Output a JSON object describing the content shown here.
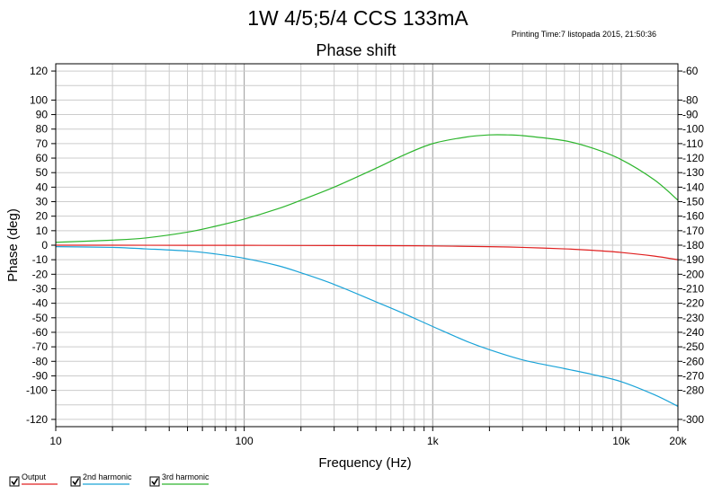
{
  "header": {
    "title": "1W 4/5;5/4 CCS 133mA",
    "printing_time": "Printing Time:7 listopada 2015, 21:50:36"
  },
  "chart_data": {
    "type": "line",
    "title": "Phase shift",
    "xlabel": "Frequency (Hz)",
    "ylabel": "Phase (deg)",
    "x_scale": "log",
    "xlim": [
      10,
      20000
    ],
    "ylim": [
      -125,
      125
    ],
    "y2lim": [
      -305,
      -55
    ],
    "x_tick_labels": [
      {
        "value": 10,
        "label": "10"
      },
      {
        "value": 100,
        "label": "100"
      },
      {
        "value": 1000,
        "label": "1k"
      },
      {
        "value": 10000,
        "label": "10k"
      },
      {
        "value": 20000,
        "label": "20k"
      }
    ],
    "y_ticks": [
      120,
      100,
      90,
      80,
      70,
      60,
      50,
      40,
      30,
      20,
      10,
      0,
      -10,
      -20,
      -30,
      -40,
      -50,
      -60,
      -70,
      -80,
      -90,
      -100,
      -120
    ],
    "y2_ticks": [
      -60,
      -80,
      -90,
      -100,
      -110,
      -120,
      -130,
      -140,
      -150,
      -160,
      -170,
      -180,
      -190,
      -200,
      -210,
      -220,
      -230,
      -240,
      -250,
      -260,
      -270,
      -280,
      -300
    ],
    "grid": true,
    "legend_position": "bottom-left",
    "series": [
      {
        "name": "Output",
        "color": "#e02020",
        "x": [
          10,
          20,
          50,
          100,
          200,
          500,
          1000,
          2000,
          3000,
          5000,
          7000,
          10000,
          15000,
          20000
        ],
        "y": [
          0,
          0,
          -0.1,
          -0.1,
          -0.2,
          -0.3,
          -0.5,
          -1,
          -1.5,
          -2.5,
          -3.5,
          -5,
          -7.5,
          -10
        ]
      },
      {
        "name": "2nd harmonic",
        "color": "#1aa3d8",
        "x": [
          10,
          20,
          30,
          50,
          70,
          100,
          150,
          200,
          300,
          500,
          700,
          1000,
          1500,
          2000,
          3000,
          5000,
          7000,
          10000,
          15000,
          20000
        ],
        "y": [
          -1,
          -1.5,
          -2.5,
          -4,
          -6,
          -9,
          -14,
          -19,
          -27,
          -39,
          -47,
          -56,
          -66,
          -72,
          -79,
          -85,
          -89,
          -94,
          -103,
          -111
        ]
      },
      {
        "name": "3rd harmonic",
        "color": "#2db52d",
        "x": [
          10,
          20,
          30,
          50,
          70,
          100,
          150,
          200,
          300,
          500,
          700,
          1000,
          1500,
          2000,
          2500,
          3000,
          5000,
          7000,
          10000,
          15000,
          20000
        ],
        "y": [
          2,
          3.5,
          5,
          9,
          13,
          18,
          25,
          31,
          40,
          53,
          62,
          70,
          74.5,
          76,
          76,
          75.5,
          72,
          67,
          59,
          45,
          31
        ]
      }
    ]
  }
}
